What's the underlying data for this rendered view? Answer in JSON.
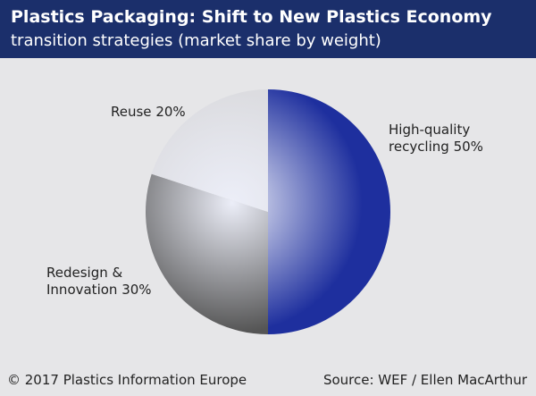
{
  "chart_data": {
    "type": "pie",
    "title": "Plastics Packaging: Shift to New Plastics Economy",
    "subtitle": "transition strategies (market share by weight)",
    "categories": [
      "High-quality recycling",
      "Redesign & Innovation",
      "Reuse"
    ],
    "values": [
      50,
      30,
      20
    ],
    "value_labels": [
      "50%",
      "30%",
      "20%"
    ],
    "colors": [
      "#1e2f9e",
      "#555555",
      "#d9d9dc"
    ],
    "copyright": "© 2017 Plastics Information Europe",
    "source": "Source: WEF / Ellen MacArthur"
  }
}
